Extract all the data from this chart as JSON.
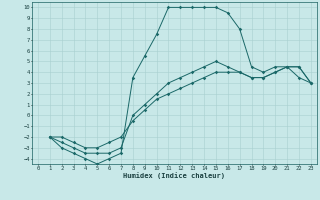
{
  "xlabel": "Humidex (Indice chaleur)",
  "ylabel": "",
  "bg_color": "#c8e8e8",
  "grid_color": "#a8d0d0",
  "line_color": "#1a6868",
  "xlim": [
    -0.5,
    23.5
  ],
  "ylim": [
    -4.5,
    10.5
  ],
  "xticks": [
    0,
    1,
    2,
    3,
    4,
    5,
    6,
    7,
    8,
    9,
    10,
    11,
    12,
    13,
    14,
    15,
    16,
    17,
    18,
    19,
    20,
    21,
    22,
    23
  ],
  "yticks": [
    -4,
    -3,
    -2,
    -1,
    0,
    1,
    2,
    3,
    4,
    5,
    6,
    7,
    8,
    9,
    10
  ],
  "line1": {
    "x": [
      1,
      2,
      3,
      4,
      5,
      6,
      7,
      8,
      9,
      10,
      11,
      12,
      13,
      14,
      15,
      16,
      17,
      18,
      19,
      20,
      21,
      22,
      23
    ],
    "y": [
      -2,
      -3,
      -3.5,
      -4,
      -4.5,
      -4,
      -3.5,
      3.5,
      5.5,
      7.5,
      10,
      10,
      10,
      10,
      10,
      9.5,
      8,
      4.5,
      4,
      4.5,
      4.5,
      3.5,
      3
    ]
  },
  "line2": {
    "x": [
      1,
      2,
      3,
      4,
      5,
      6,
      7,
      8,
      9,
      10,
      11,
      12,
      13,
      14,
      15,
      16,
      17,
      18,
      19,
      20,
      21,
      22,
      23
    ],
    "y": [
      -2,
      -2.5,
      -3,
      -3.5,
      -3.5,
      -3.5,
      -3,
      0,
      1,
      2,
      3,
      3.5,
      4,
      4.5,
      5,
      4.5,
      4,
      3.5,
      3.5,
      4,
      4.5,
      4.5,
      3
    ]
  },
  "line3": {
    "x": [
      1,
      2,
      3,
      4,
      5,
      6,
      7,
      8,
      9,
      10,
      11,
      12,
      13,
      14,
      15,
      16,
      17,
      18,
      19,
      20,
      21,
      22,
      23
    ],
    "y": [
      -2,
      -2,
      -2.5,
      -3,
      -3,
      -2.5,
      -2,
      -0.5,
      0.5,
      1.5,
      2,
      2.5,
      3,
      3.5,
      4,
      4,
      4,
      3.5,
      3.5,
      4,
      4.5,
      4.5,
      3
    ]
  }
}
